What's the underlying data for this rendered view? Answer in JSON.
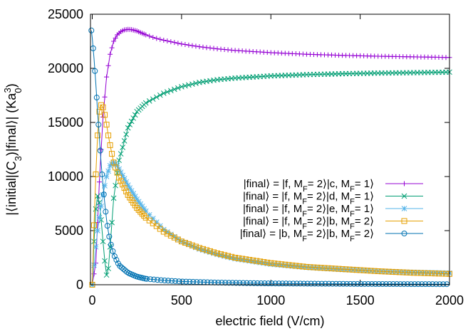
{
  "chart_data": {
    "type": "line",
    "title": "",
    "xlabel": "electric field (V/cm)",
    "ylabel_parts": [
      "|⟨initial|(C",
      "3",
      ")|final⟩| (Ka",
      "0",
      "3",
      ")"
    ],
    "xlim": [
      -10,
      2000
    ],
    "ylim": [
      0,
      25000
    ],
    "xticks": [
      0,
      500,
      1000,
      1500,
      2000
    ],
    "xtick_labels": [
      "0",
      "500",
      "1000",
      "1500",
      "2000"
    ],
    "yticks": [
      0,
      5000,
      10000,
      15000,
      20000,
      25000
    ],
    "ytick_labels": [
      "0",
      "5000",
      "10000",
      "15000",
      "20000",
      "25000"
    ],
    "legend_position": "center-right",
    "series": [
      {
        "name": "|final⟩ = |f, MF= 2⟩|c, MF= 1⟩",
        "label_parts": [
          "|final⟩ = |f, M",
          "F",
          "= 2⟩|c, M",
          "F",
          "= 1⟩"
        ],
        "color": "#9400d3",
        "marker": "plus",
        "x": [
          0,
          20,
          40,
          60,
          80,
          100,
          120,
          140,
          160,
          180,
          200,
          220,
          250,
          300,
          350,
          400,
          500,
          600,
          700,
          800,
          900,
          1000,
          1200,
          1400,
          1600,
          1800,
          2000
        ],
        "y": [
          0,
          2000,
          9500,
          15500,
          19200,
          21300,
          22500,
          23100,
          23400,
          23550,
          23600,
          23580,
          23450,
          23100,
          22800,
          22600,
          22250,
          22000,
          21800,
          21650,
          21550,
          21450,
          21300,
          21200,
          21120,
          21060,
          21000
        ]
      },
      {
        "name": "|final⟩ = |f, MF= 2⟩|d, MF= 1⟩",
        "label_parts": [
          "|final⟩ = |f, M",
          "F",
          "= 2⟩|d, M",
          "F",
          "= 1⟩"
        ],
        "color": "#009e73",
        "marker": "cross",
        "x": [
          0,
          10,
          20,
          30,
          40,
          50,
          60,
          70,
          80,
          90,
          100,
          120,
          150,
          200,
          250,
          300,
          400,
          500,
          600,
          700,
          800,
          900,
          1000,
          1200,
          1400,
          1600,
          1800,
          2000
        ],
        "y": [
          0,
          4000,
          7000,
          8200,
          7600,
          6000,
          4000,
          2200,
          900,
          1500,
          3500,
          8000,
          11500,
          14500,
          16000,
          16800,
          17700,
          18300,
          18700,
          18950,
          19100,
          19200,
          19300,
          19420,
          19500,
          19560,
          19600,
          19650
        ]
      },
      {
        "name": "|final⟩ = |f, MF= 2⟩|e, MF= 1⟩",
        "label_parts": [
          "|final⟩ = |f, M",
          "F",
          "= 2⟩|e, M",
          "F",
          "= 1⟩"
        ],
        "color": "#56b4e9",
        "marker": "star",
        "x": [
          0,
          10,
          20,
          30,
          40,
          60,
          80,
          100,
          120,
          140,
          160,
          200,
          250,
          300,
          400,
          500,
          600,
          700,
          800,
          1000,
          1200,
          1400,
          1600,
          1800,
          2000
        ],
        "y": [
          0,
          1800,
          3500,
          5000,
          6200,
          8300,
          10000,
          11000,
          11300,
          11000,
          10400,
          9200,
          7900,
          6800,
          5100,
          4000,
          3300,
          2800,
          2400,
          1900,
          1600,
          1400,
          1250,
          1150,
          1080
        ]
      },
      {
        "name": "|final⟩ = |f, MF= 2⟩|b, MF= 2⟩",
        "label_parts": [
          "|final⟩ = |f, M",
          "F",
          "= 2⟩|b, M",
          "F",
          "= 2⟩"
        ],
        "color": "#e69f00",
        "marker": "square",
        "x": [
          0,
          10,
          20,
          30,
          40,
          50,
          60,
          70,
          80,
          90,
          100,
          120,
          150,
          200,
          250,
          300,
          400,
          500,
          600,
          700,
          800,
          1000,
          1200,
          1400,
          1600,
          1800,
          2000
        ],
        "y": [
          0,
          5500,
          10200,
          13800,
          16000,
          16600,
          16400,
          15700,
          14800,
          13800,
          12900,
          11300,
          9900,
          8300,
          7100,
          6200,
          4900,
          4000,
          3400,
          2900,
          2500,
          2000,
          1650,
          1450,
          1250,
          1100,
          1000
        ]
      },
      {
        "name": "|final⟩ = |b, MF= 2⟩|b, MF= 2⟩",
        "label_parts": [
          "|final⟩ = |b, M",
          "F",
          "= 2⟩|b, M",
          "F",
          "= 2⟩"
        ],
        "color": "#0072b2",
        "marker": "circle",
        "x": [
          -5,
          0,
          10,
          20,
          30,
          40,
          50,
          60,
          70,
          80,
          90,
          100,
          120,
          150,
          200,
          250,
          300,
          400,
          500,
          700,
          1000,
          1500,
          2000
        ],
        "y": [
          23500,
          22800,
          20900,
          18600,
          16000,
          13600,
          11200,
          9200,
          7500,
          6000,
          4900,
          4000,
          2800,
          1800,
          1100,
          750,
          550,
          400,
          300,
          200,
          120,
          70,
          50
        ]
      }
    ]
  }
}
